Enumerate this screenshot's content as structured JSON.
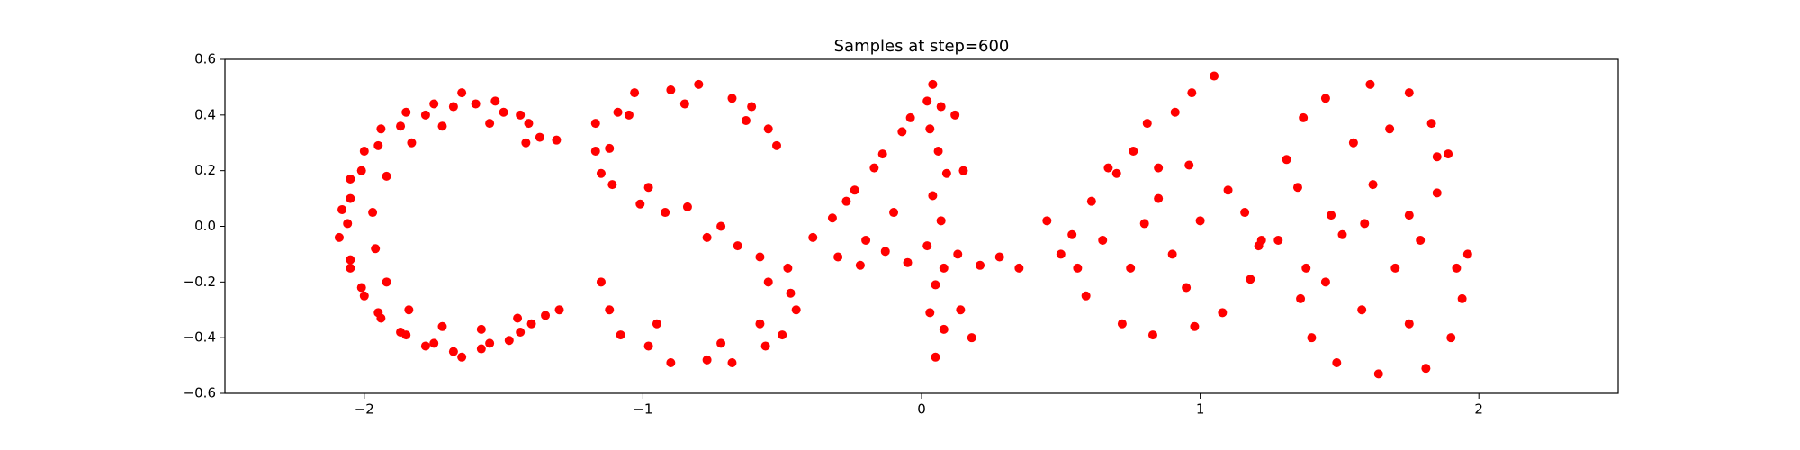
{
  "chart_data": {
    "type": "scatter",
    "title": "Samples at step=600",
    "color": "#ff0000",
    "xlim": [
      -2.5,
      2.5
    ],
    "ylim": [
      -0.6,
      0.6
    ],
    "xticks": [
      {
        "value": -2,
        "label": "−2"
      },
      {
        "value": -1,
        "label": "−1"
      },
      0,
      1,
      2
    ],
    "yticks": [
      {
        "value": -0.6,
        "label": "−0.6"
      },
      {
        "value": -0.4,
        "label": "−0.4"
      },
      {
        "value": -0.2,
        "label": "−0.2"
      },
      {
        "value": 0,
        "label": "0.0"
      },
      0.2,
      0.4,
      0.6
    ],
    "x": [
      -1.31,
      -1.37,
      -1.41,
      -1.44,
      -1.5,
      -1.53,
      -1.6,
      -1.65,
      -1.68,
      -1.75,
      -1.78,
      -1.85,
      -1.87,
      -1.94,
      -1.95,
      -2.0,
      -2.01,
      -2.05,
      -2.05,
      -2.08,
      -2.06,
      -2.09,
      -2.05,
      -2.05,
      -2.01,
      -2.0,
      -1.95,
      -1.94,
      -1.87,
      -1.85,
      -1.78,
      -1.75,
      -1.68,
      -1.65,
      -1.58,
      -1.55,
      -1.48,
      -1.44,
      -1.4,
      -1.35,
      -1.3,
      -1.72,
      -1.83,
      -1.92,
      -1.97,
      -1.96,
      -1.92,
      -1.84,
      -1.72,
      -1.58,
      -1.45,
      -1.55,
      -1.42,
      -0.52,
      -0.55,
      -0.61,
      -0.68,
      -0.8,
      -0.9,
      -1.03,
      -1.09,
      -1.17,
      -1.17,
      -1.15,
      -1.11,
      -1.01,
      -0.92,
      -0.84,
      -0.77,
      -0.66,
      -0.58,
      -0.48,
      -0.47,
      -0.45,
      -0.5,
      -0.56,
      -0.68,
      -0.77,
      -0.9,
      -0.98,
      -1.08,
      -1.12,
      -0.63,
      -0.85,
      -1.05,
      -1.12,
      -0.98,
      -0.72,
      -0.55,
      -0.58,
      -0.72,
      -0.95,
      -1.15,
      -0.39,
      -0.32,
      -0.27,
      -0.24,
      -0.17,
      -0.14,
      -0.07,
      -0.04,
      0.02,
      0.04,
      0.07,
      0.03,
      0.06,
      0.09,
      0.04,
      0.07,
      0.02,
      0.08,
      0.05,
      0.03,
      0.08,
      0.05,
      -0.3,
      -0.22,
      -0.13,
      -0.05,
      0.13,
      0.21,
      0.28,
      0.35,
      -0.2,
      0.12,
      0.15,
      0.14,
      0.18,
      -0.1,
      1.21,
      1.16,
      1.1,
      0.96,
      0.85,
      0.7,
      0.61,
      0.54,
      0.56,
      0.59,
      0.72,
      0.83,
      0.98,
      1.08,
      1.18,
      0.67,
      0.76,
      0.81,
      0.91,
      0.97,
      1.05,
      0.8,
      0.9,
      1.0,
      0.75,
      0.95,
      0.85,
      0.45,
      0.5,
      1.28,
      0.65,
      1.89,
      1.83,
      1.75,
      1.61,
      1.45,
      1.37,
      1.31,
      1.35,
      1.47,
      1.59,
      1.75,
      1.85,
      1.94,
      1.92,
      1.79,
      1.51,
      1.38,
      1.36,
      1.4,
      1.49,
      1.64,
      1.81,
      1.9,
      1.55,
      1.68,
      1.62,
      1.7,
      1.58,
      1.75,
      1.45,
      1.96,
      1.22,
      1.85
    ],
    "values": [
      0.31,
      0.32,
      0.37,
      0.4,
      0.41,
      0.45,
      0.44,
      0.48,
      0.43,
      0.44,
      0.4,
      0.41,
      0.36,
      0.35,
      0.29,
      0.27,
      0.2,
      0.17,
      0.1,
      0.06,
      0.01,
      -0.04,
      -0.12,
      -0.15,
      -0.22,
      -0.25,
      -0.31,
      -0.33,
      -0.38,
      -0.39,
      -0.43,
      -0.42,
      -0.45,
      -0.47,
      -0.44,
      -0.42,
      -0.41,
      -0.38,
      -0.35,
      -0.32,
      -0.3,
      0.36,
      0.3,
      0.18,
      0.05,
      -0.08,
      -0.2,
      -0.3,
      -0.36,
      -0.37,
      -0.33,
      0.37,
      0.3,
      0.29,
      0.35,
      0.43,
      0.46,
      0.51,
      0.49,
      0.48,
      0.41,
      0.37,
      0.27,
      0.19,
      0.15,
      0.08,
      0.05,
      0.07,
      -0.04,
      -0.07,
      -0.11,
      -0.15,
      -0.24,
      -0.3,
      -0.39,
      -0.43,
      -0.49,
      -0.48,
      -0.49,
      -0.43,
      -0.39,
      -0.3,
      0.38,
      0.44,
      0.4,
      0.28,
      0.14,
      0.0,
      -0.2,
      -0.35,
      -0.42,
      -0.35,
      -0.2,
      -0.04,
      0.03,
      0.09,
      0.13,
      0.21,
      0.26,
      0.34,
      0.39,
      0.45,
      0.51,
      0.43,
      0.35,
      0.27,
      0.19,
      0.11,
      0.02,
      -0.07,
      -0.15,
      -0.21,
      -0.31,
      -0.37,
      -0.47,
      -0.11,
      -0.14,
      -0.09,
      -0.13,
      -0.1,
      -0.14,
      -0.11,
      -0.15,
      -0.05,
      0.4,
      0.2,
      -0.3,
      -0.4,
      0.05,
      -0.07,
      0.05,
      0.13,
      0.22,
      0.21,
      0.19,
      0.09,
      -0.03,
      -0.15,
      -0.25,
      -0.35,
      -0.39,
      -0.36,
      -0.31,
      -0.19,
      0.21,
      0.27,
      0.37,
      0.41,
      0.48,
      0.54,
      0.01,
      -0.1,
      0.02,
      -0.15,
      -0.22,
      0.1,
      0.02,
      -0.1,
      -0.05,
      -0.05,
      0.26,
      0.37,
      0.48,
      0.51,
      0.46,
      0.39,
      0.24,
      0.14,
      0.04,
      0.01,
      0.04,
      0.12,
      -0.26,
      -0.15,
      -0.05,
      -0.03,
      -0.15,
      -0.26,
      -0.4,
      -0.49,
      -0.53,
      -0.51,
      -0.4,
      0.3,
      0.35,
      0.15,
      -0.15,
      -0.3,
      -0.35,
      -0.2,
      -0.1,
      -0.05,
      0.25
    ]
  }
}
